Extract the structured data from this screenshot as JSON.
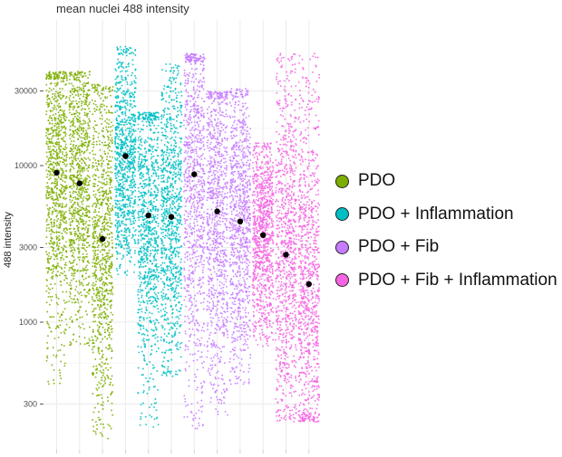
{
  "chart_data": {
    "type": "scatter",
    "title": "mean nuclei 488 intensity",
    "xlabel": "",
    "ylabel": "488 intensity",
    "y_scale": "log",
    "ylim": [
      180,
      70000
    ],
    "y_ticks": [
      300,
      1000,
      3000,
      10000,
      30000
    ],
    "y_tick_labels": [
      "300",
      "1000",
      "3000",
      "10000",
      "30000"
    ],
    "grid": true,
    "legend_position": "right",
    "series": [
      {
        "name": "PDO",
        "color": "#7cae00",
        "lanes": [
          1,
          2,
          3
        ],
        "means": [
          9000,
          7700,
          3400
        ]
      },
      {
        "name": "PDO + Inflammation",
        "color": "#00bfc4",
        "lanes": [
          4,
          5,
          6
        ],
        "means": [
          11500,
          4800,
          4700
        ]
      },
      {
        "name": "PDO + Fib",
        "color": "#c77cff",
        "lanes": [
          7,
          8,
          9
        ],
        "means": [
          8800,
          5100,
          4400
        ]
      },
      {
        "name": "PDO + Fib + Inflammation",
        "color": "#f564e3",
        "lanes": [
          10,
          11,
          12
        ],
        "means": [
          3600,
          2700,
          1750
        ]
      }
    ],
    "lane_ranges": [
      {
        "lane": 1,
        "min": 400,
        "max": 40000
      },
      {
        "lane": 2,
        "min": 700,
        "max": 40000
      },
      {
        "lane": 3,
        "min": 180,
        "max": 33000
      },
      {
        "lane": 4,
        "min": 2000,
        "max": 58000
      },
      {
        "lane": 5,
        "min": 210,
        "max": 22000
      },
      {
        "lane": 6,
        "min": 450,
        "max": 45000
      },
      {
        "lane": 7,
        "min": 200,
        "max": 52000
      },
      {
        "lane": 8,
        "min": 250,
        "max": 30000
      },
      {
        "lane": 9,
        "min": 400,
        "max": 31000
      },
      {
        "lane": 10,
        "min": 700,
        "max": 14000
      },
      {
        "lane": 11,
        "min": 230,
        "max": 52000
      },
      {
        "lane": 12,
        "min": 230,
        "max": 52000
      }
    ]
  }
}
